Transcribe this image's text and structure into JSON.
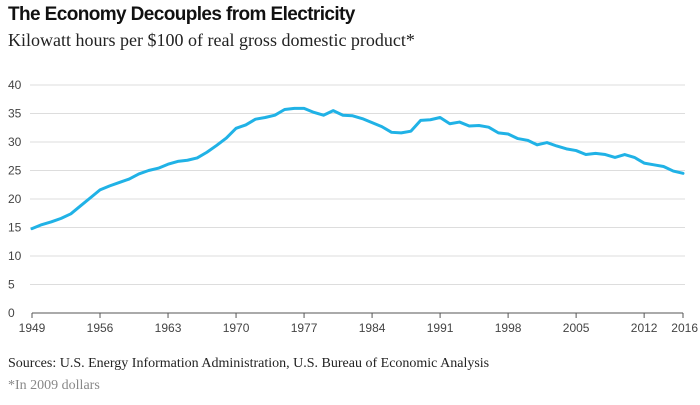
{
  "title": "The Economy Decouples from Electricity",
  "subtitle": "Kilowatt hours per $100 of real gross domestic product*",
  "source": "Sources: U.S. Energy Information Administration, U.S. Bureau of Economic Analysis",
  "footnote": "*In 2009 dollars",
  "colors": {
    "line": "#20b2e6",
    "grid": "#dddddd",
    "axis": "#555555"
  },
  "chart_data": {
    "type": "line",
    "title": "The Economy Decouples from Electricity",
    "subtitle": "Kilowatt hours per $100 of real gross domestic product*",
    "xlabel": "",
    "ylabel": "",
    "xlim": [
      1949,
      2016
    ],
    "ylim": [
      0,
      40
    ],
    "xticks": [
      1949,
      1956,
      1963,
      1970,
      1977,
      1984,
      1991,
      1998,
      2005,
      2012,
      2016
    ],
    "yticks": [
      0,
      5,
      10,
      15,
      20,
      25,
      30,
      35,
      40
    ],
    "grid": true,
    "legend": "none",
    "series": [
      {
        "x": [
          1949,
          1950,
          1951,
          1952,
          1953,
          1954,
          1955,
          1956,
          1957,
          1958,
          1959,
          1960,
          1961,
          1962,
          1963,
          1964,
          1965,
          1966,
          1967,
          1968,
          1969,
          1970,
          1971,
          1972,
          1973,
          1974,
          1975,
          1976,
          1977,
          1978,
          1979,
          1980,
          1981,
          1982,
          1983,
          1984,
          1985,
          1986,
          1987,
          1988,
          1989,
          1990,
          1991,
          1992,
          1993,
          1994,
          1995,
          1996,
          1997,
          1998,
          1999,
          2000,
          2001,
          2002,
          2003,
          2004,
          2005,
          2006,
          2007,
          2008,
          2009,
          2010,
          2011,
          2012,
          2013,
          2014,
          2015,
          2016
        ],
        "values": [
          14.8,
          15.5,
          16.0,
          16.6,
          17.4,
          18.8,
          20.2,
          21.6,
          22.3,
          22.9,
          23.5,
          24.4,
          25.0,
          25.4,
          26.1,
          26.6,
          26.8,
          27.2,
          28.2,
          29.4,
          30.7,
          32.4,
          33.0,
          34.0,
          34.3,
          34.7,
          35.7,
          35.9,
          35.9,
          35.2,
          34.7,
          35.5,
          34.7,
          34.6,
          34.1,
          33.4,
          32.7,
          31.7,
          31.6,
          31.9,
          33.8,
          33.9,
          34.3,
          33.2,
          33.5,
          32.8,
          32.9,
          32.6,
          31.6,
          31.4,
          30.6,
          30.3,
          29.5,
          29.9,
          29.3,
          28.8,
          28.5,
          27.8,
          28.0,
          27.8,
          27.3,
          27.8,
          27.3,
          26.3,
          26.0,
          25.7,
          24.9,
          24.5
        ]
      }
    ]
  }
}
